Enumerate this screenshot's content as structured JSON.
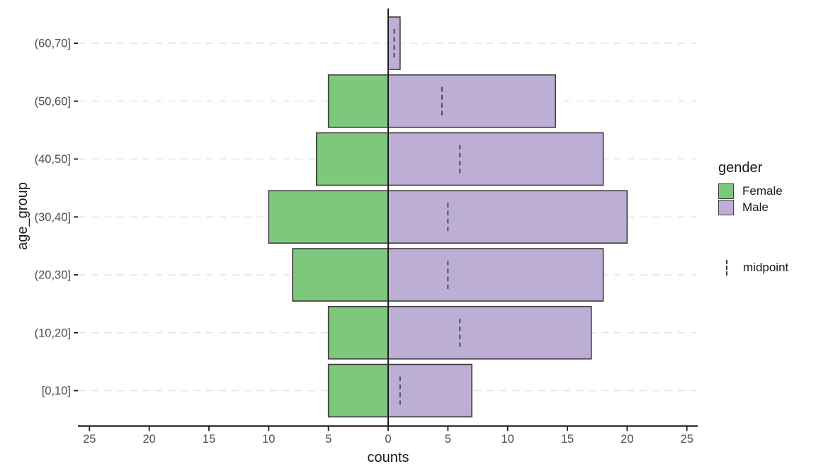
{
  "chart_data": {
    "type": "bar",
    "variant": "population-pyramid-horizontal-diverging",
    "title": "",
    "xlabel": "counts",
    "ylabel": "age_group",
    "categories_top_to_bottom": [
      "(60,70]",
      "(50,60]",
      "(40,50]",
      "(30,40]",
      "(20,30]",
      "(10,20]",
      "[0,10]"
    ],
    "series": [
      {
        "name": "Female",
        "direction": "left",
        "color": "#7ec87e",
        "values": [
          0,
          5,
          6,
          10,
          8,
          5,
          5
        ]
      },
      {
        "name": "Male",
        "direction": "right",
        "color": "#bdaed5",
        "values": [
          1,
          14,
          18,
          20,
          18,
          17,
          7
        ]
      }
    ],
    "midpoints": {
      "name": "midpoint",
      "values": [
        0.5,
        4.5,
        6,
        5,
        5,
        6,
        1
      ]
    },
    "x_axis": {
      "range": [
        -26,
        26
      ],
      "ticks": [
        -25,
        -20,
        -15,
        -10,
        -5,
        0,
        5,
        10,
        15,
        20,
        25
      ],
      "tick_labels": [
        "25",
        "20",
        "15",
        "10",
        "5",
        "0",
        "5",
        "10",
        "15",
        "20",
        "25"
      ]
    },
    "legend": {
      "position": "right",
      "title": "gender",
      "items": [
        {
          "label": "Female",
          "color": "#7ec87e"
        },
        {
          "label": "Male",
          "color": "#bdaed5"
        }
      ],
      "midpoint_label": "midpoint"
    },
    "grid": {
      "horizontal": true,
      "dashed": true,
      "color": "#e4e4e4"
    },
    "styles": {
      "bar_border": "#3d3d3d",
      "zero_line": "#1a1a1a",
      "axis_line": "#1a1a1a",
      "tick_label_color": "#4d4d4d",
      "title_color": "#1a1a1a",
      "midpoint_line_color": "#3c3c3c",
      "background": "#ffffff"
    }
  }
}
